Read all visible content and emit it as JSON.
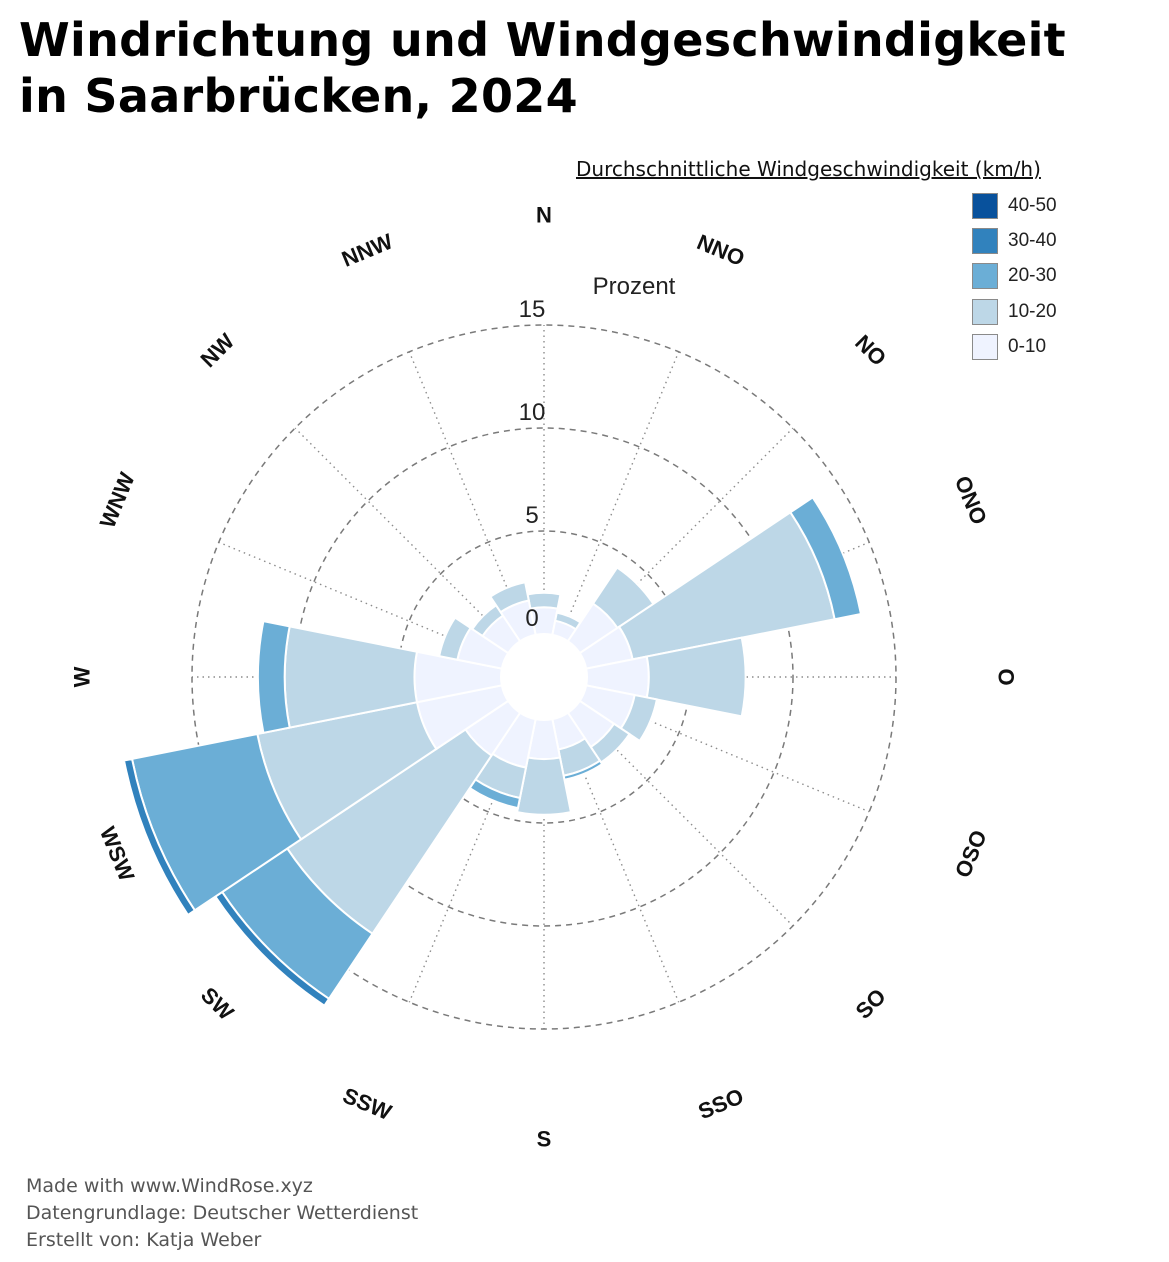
{
  "title_lines": [
    "Windrichtung und Windgeschwindigkeit",
    "in Saarbrücken, 2024"
  ],
  "legend": {
    "title": "Durchschnittliche Windgeschwindigkeit (km/h)",
    "items": [
      {
        "label": "40-50",
        "color": "#08519c"
      },
      {
        "label": "30-40",
        "color": "#3182bd"
      },
      {
        "label": "20-30",
        "color": "#6baed6"
      },
      {
        "label": "10-20",
        "color": "#bdd7e7"
      },
      {
        "label": "0-10",
        "color": "#eff3ff"
      }
    ]
  },
  "footer": {
    "line1": "Made with www.WindRose.xyz",
    "line2": "Datengrundlage: Deutscher Wetterdienst",
    "line3": "Erstellt von: Katja Weber"
  },
  "chart_data": {
    "type": "windrose",
    "radial_axis_label": "Prozent",
    "radial_ticks": [
      0,
      5,
      10,
      15
    ],
    "rmax": 15,
    "directions": [
      "N",
      "NNO",
      "NO",
      "ONO",
      "O",
      "OSO",
      "SO",
      "SSO",
      "S",
      "SSW",
      "SW",
      "WSW",
      "W",
      "WNW",
      "NW",
      "NNW"
    ],
    "speed_bins": [
      "0-10",
      "10-20",
      "20-30",
      "30-40",
      "40-50"
    ],
    "series": [
      {
        "name": "0-10",
        "color": "#eff3ff",
        "values": [
          1.3,
          0.7,
          2.2,
          2.3,
          3.0,
          2.4,
          2.0,
          1.5,
          1.9,
          2.4,
          2.5,
          4.2,
          4.2,
          2.2,
          1.5,
          1.7
        ]
      },
      {
        "name": "10-20",
        "color": "#bdd7e7",
        "values": [
          0.7,
          0.4,
          2.1,
          10.0,
          4.7,
          1.1,
          0.9,
          1.3,
          2.7,
          1.5,
          10.4,
          7.9,
          6.3,
          0.9,
          0.6,
          0.9
        ]
      },
      {
        "name": "20-30",
        "color": "#6baed6",
        "values": [
          0,
          0,
          0,
          1.3,
          0,
          0,
          0,
          0.2,
          0,
          0.5,
          3.8,
          6.2,
          1.3,
          0,
          0,
          0
        ]
      },
      {
        "name": "30-40",
        "color": "#3182bd",
        "values": [
          0,
          0,
          0,
          0,
          0,
          0,
          0,
          0,
          0,
          0,
          0.4,
          0.4,
          0,
          0,
          0,
          0
        ]
      },
      {
        "name": "40-50",
        "color": "#08519c",
        "values": [
          0,
          0,
          0,
          0,
          0,
          0,
          0,
          0,
          0,
          0,
          0,
          0,
          0,
          0,
          0,
          0
        ]
      }
    ]
  }
}
